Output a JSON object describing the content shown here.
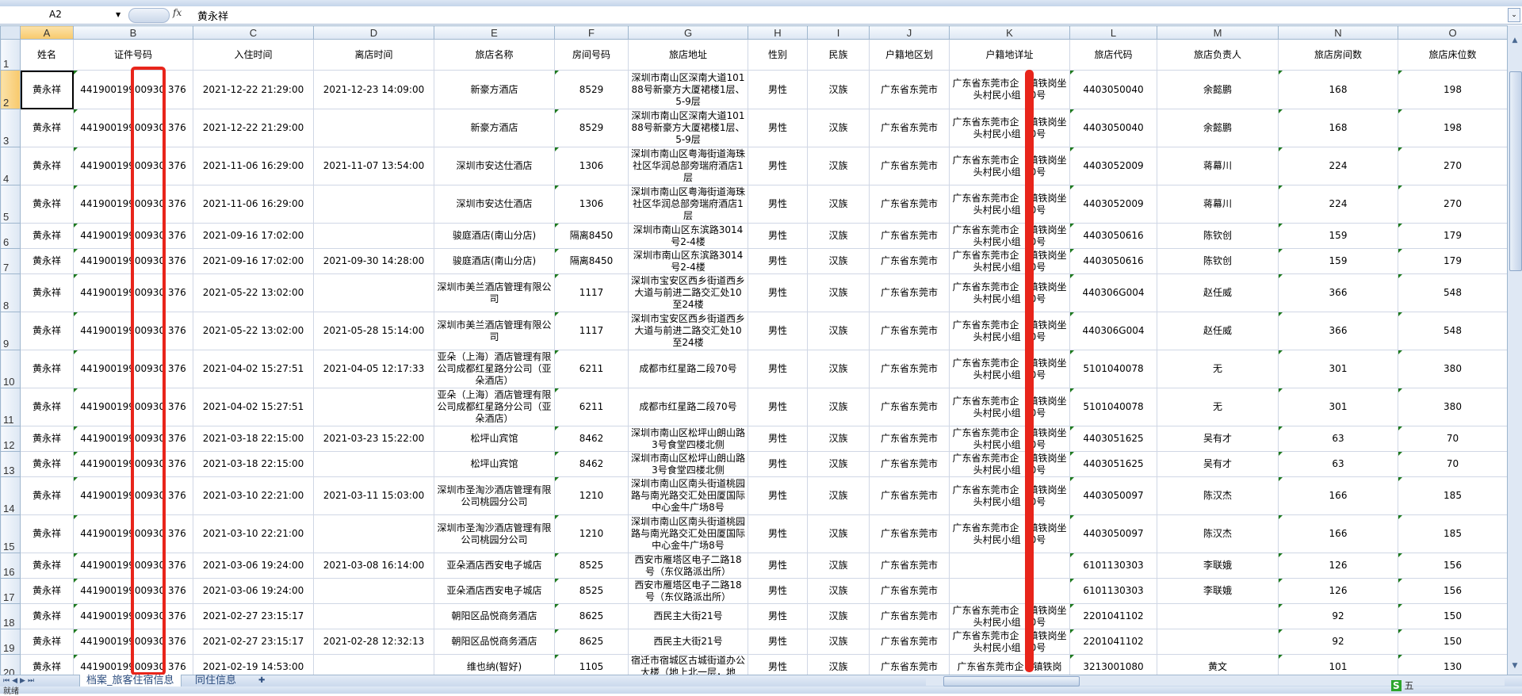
{
  "formula_bar": {
    "name_box": "A2",
    "fx_label": "fx",
    "content": "黄永祥"
  },
  "columns": [
    "A",
    "B",
    "C",
    "D",
    "E",
    "F",
    "G",
    "H",
    "I",
    "J",
    "K",
    "L",
    "M",
    "N",
    "O"
  ],
  "header_row": [
    "姓名",
    "证件号码",
    "入住时间",
    "离店时间",
    "旅店名称",
    "房间号码",
    "旅店地址",
    "性别",
    "民族",
    "户籍地区划",
    "户籍地详址",
    "旅店代码",
    "旅店负责人",
    "旅店房间数",
    "旅店床位数"
  ],
  "rows": [
    [
      "黄永祥",
      "44190019900930 376",
      "2021-12-22 21:29:00",
      "2021-12-23 14:09:00",
      "新豪方酒店",
      "8529",
      "深圳市南山区深南大道10188号新豪方大厦裙楼1层、5-9层",
      "男性",
      "汉族",
      "广东省东莞市",
      "广东省东莞市企　镇铁岗坐头村民小组　0号",
      "4403050040",
      "余懿鹏",
      "168",
      "198"
    ],
    [
      "黄永祥",
      "44190019900930 376",
      "2021-12-22 21:29:00",
      "",
      "新豪方酒店",
      "8529",
      "深圳市南山区深南大道10188号新豪方大厦裙楼1层、5-9层",
      "男性",
      "汉族",
      "广东省东莞市",
      "广东省东莞市企　镇铁岗坐头村民小组　0号",
      "4403050040",
      "余懿鹏",
      "168",
      "198"
    ],
    [
      "黄永祥",
      "44190019900930 376",
      "2021-11-06 16:29:00",
      "2021-11-07 13:54:00",
      "深圳市安达仕酒店",
      "1306",
      "深圳市南山区粤海街道海珠社区华润总部旁瑞府酒店1层",
      "男性",
      "汉族",
      "广东省东莞市",
      "广东省东莞市企　镇铁岗坐头村民小组　0号",
      "4403052009",
      "蒋幕川",
      "224",
      "270"
    ],
    [
      "黄永祥",
      "44190019900930 376",
      "2021-11-06 16:29:00",
      "",
      "深圳市安达仕酒店",
      "1306",
      "深圳市南山区粤海街道海珠社区华润总部旁瑞府酒店1层",
      "男性",
      "汉族",
      "广东省东莞市",
      "广东省东莞市企　镇铁岗坐头村民小组　0号",
      "4403052009",
      "蒋幕川",
      "224",
      "270"
    ],
    [
      "黄永祥",
      "44190019900930 376",
      "2021-09-16 17:02:00",
      "",
      "骏庭酒店(南山分店)",
      "隔离8450",
      "深圳市南山区东滨路3014号2-4楼",
      "男性",
      "汉族",
      "广东省东莞市",
      "广东省东莞市企　镇铁岗坐头村民小组　0号",
      "4403050616",
      "陈钦创",
      "159",
      "179"
    ],
    [
      "黄永祥",
      "44190019900930 376",
      "2021-09-16 17:02:00",
      "2021-09-30 14:28:00",
      "骏庭酒店(南山分店)",
      "隔离8450",
      "深圳市南山区东滨路3014号2-4楼",
      "男性",
      "汉族",
      "广东省东莞市",
      "广东省东莞市企　镇铁岗坐头村民小组　0号",
      "4403050616",
      "陈钦创",
      "159",
      "179"
    ],
    [
      "黄永祥",
      "44190019900930 376",
      "2021-05-22 13:02:00",
      "",
      "深圳市美兰酒店管理有限公司",
      "1117",
      "深圳市宝安区西乡街道西乡大道与前进二路交汇处10至24楼",
      "男性",
      "汉族",
      "广东省东莞市",
      "广东省东莞市企　镇铁岗坐头村民小组　0号",
      "440306G004",
      "赵任威",
      "366",
      "548"
    ],
    [
      "黄永祥",
      "44190019900930 376",
      "2021-05-22 13:02:00",
      "2021-05-28 15:14:00",
      "深圳市美兰酒店管理有限公司",
      "1117",
      "深圳市宝安区西乡街道西乡大道与前进二路交汇处10至24楼",
      "男性",
      "汉族",
      "广东省东莞市",
      "广东省东莞市企　镇铁岗坐头村民小组　0号",
      "440306G004",
      "赵任威",
      "366",
      "548"
    ],
    [
      "黄永祥",
      "44190019900930 376",
      "2021-04-02 15:27:51",
      "2021-04-05 12:17:33",
      "亚朵（上海）酒店管理有限公司成都红星路分公司（亚朵酒店）",
      "6211",
      "成都市红星路二段70号",
      "男性",
      "汉族",
      "广东省东莞市",
      "广东省东莞市企　镇铁岗坐头村民小组　0号",
      "5101040078",
      "无",
      "301",
      "380"
    ],
    [
      "黄永祥",
      "44190019900930 376",
      "2021-04-02 15:27:51",
      "",
      "亚朵（上海）酒店管理有限公司成都红星路分公司（亚朵酒店）",
      "6211",
      "成都市红星路二段70号",
      "男性",
      "汉族",
      "广东省东莞市",
      "广东省东莞市企　镇铁岗坐头村民小组　0号",
      "5101040078",
      "无",
      "301",
      "380"
    ],
    [
      "黄永祥",
      "44190019900930 376",
      "2021-03-18 22:15:00",
      "2021-03-23 15:22:00",
      "松坪山宾馆",
      "8462",
      "深圳市南山区松坪山朗山路3号食堂四楼北侧",
      "男性",
      "汉族",
      "广东省东莞市",
      "广东省东莞市企　镇铁岗坐头村民小组　0号",
      "4403051625",
      "吴有才",
      "63",
      "70"
    ],
    [
      "黄永祥",
      "44190019900930 376",
      "2021-03-18 22:15:00",
      "",
      "松坪山宾馆",
      "8462",
      "深圳市南山区松坪山朗山路3号食堂四楼北侧",
      "男性",
      "汉族",
      "广东省东莞市",
      "广东省东莞市企　镇铁岗坐头村民小组　0号",
      "4403051625",
      "吴有才",
      "63",
      "70"
    ],
    [
      "黄永祥",
      "44190019900930 376",
      "2021-03-10 22:21:00",
      "2021-03-11 15:03:00",
      "深圳市圣淘沙酒店管理有限公司桃园分公司",
      "1210",
      "深圳市南山区南头街道桃园路与南光路交汇处田厦国际中心金牛广场8号",
      "男性",
      "汉族",
      "广东省东莞市",
      "广东省东莞市企　镇铁岗坐头村民小组　0号",
      "4403050097",
      "陈汉杰",
      "166",
      "185"
    ],
    [
      "黄永祥",
      "44190019900930 376",
      "2021-03-10 22:21:00",
      "",
      "深圳市圣淘沙酒店管理有限公司桃园分公司",
      "1210",
      "深圳市南山区南头街道桃园路与南光路交汇处田厦国际中心金牛广场8号",
      "男性",
      "汉族",
      "广东省东莞市",
      "广东省东莞市企　镇铁岗坐头村民小组　0号",
      "4403050097",
      "陈汉杰",
      "166",
      "185"
    ],
    [
      "黄永祥",
      "44190019900930 376",
      "2021-03-06 19:24:00",
      "2021-03-08 16:14:00",
      "亚朵酒店西安电子城店",
      "8525",
      "西安市雁塔区电子二路18号（东仪路派出所）",
      "男性",
      "汉族",
      "广东省东莞市",
      "",
      "6101130303",
      "李联娥",
      "126",
      "156"
    ],
    [
      "黄永祥",
      "44190019900930 376",
      "2021-03-06 19:24:00",
      "",
      "亚朵酒店西安电子城店",
      "8525",
      "西安市雁塔区电子二路18号（东仪路派出所）",
      "男性",
      "汉族",
      "广东省东莞市",
      "",
      "6101130303",
      "李联娥",
      "126",
      "156"
    ],
    [
      "黄永祥",
      "44190019900930 376",
      "2021-02-27 23:15:17",
      "",
      "朝阳区品悦商务酒店",
      "8625",
      "西民主大街21号",
      "男性",
      "汉族",
      "广东省东莞市",
      "广东省东莞市企　镇铁岗坐头村民小组　0号",
      "2201041102",
      "",
      "92",
      "150"
    ],
    [
      "黄永祥",
      "44190019900930 376",
      "2021-02-27 23:15:17",
      "2021-02-28 12:32:13",
      "朝阳区品悦商务酒店",
      "8625",
      "西民主大街21号",
      "男性",
      "汉族",
      "广东省东莞市",
      "广东省东莞市企　镇铁岗坐头村民小组　0号",
      "2201041102",
      "",
      "92",
      "150"
    ],
    [
      "黄永祥",
      "44190019900930 376",
      "2021-02-19 14:53:00",
      "",
      "维也纳(智好)",
      "1105",
      "宿迁市宿城区古城街道办公大楼（地上北一层，地",
      "男性",
      "汉族",
      "广东省东莞市",
      "广东省东莞市企　镇铁岗",
      "3213001080",
      "黄文",
      "101",
      "130"
    ]
  ],
  "sheet_tabs": [
    {
      "label": "档案_旅客住宿信息",
      "active": true
    },
    {
      "label": "同住信息",
      "active": false
    }
  ],
  "status_bar": {
    "ready": "就绪",
    "ime": "五"
  },
  "annotation_color": "#e8251b"
}
